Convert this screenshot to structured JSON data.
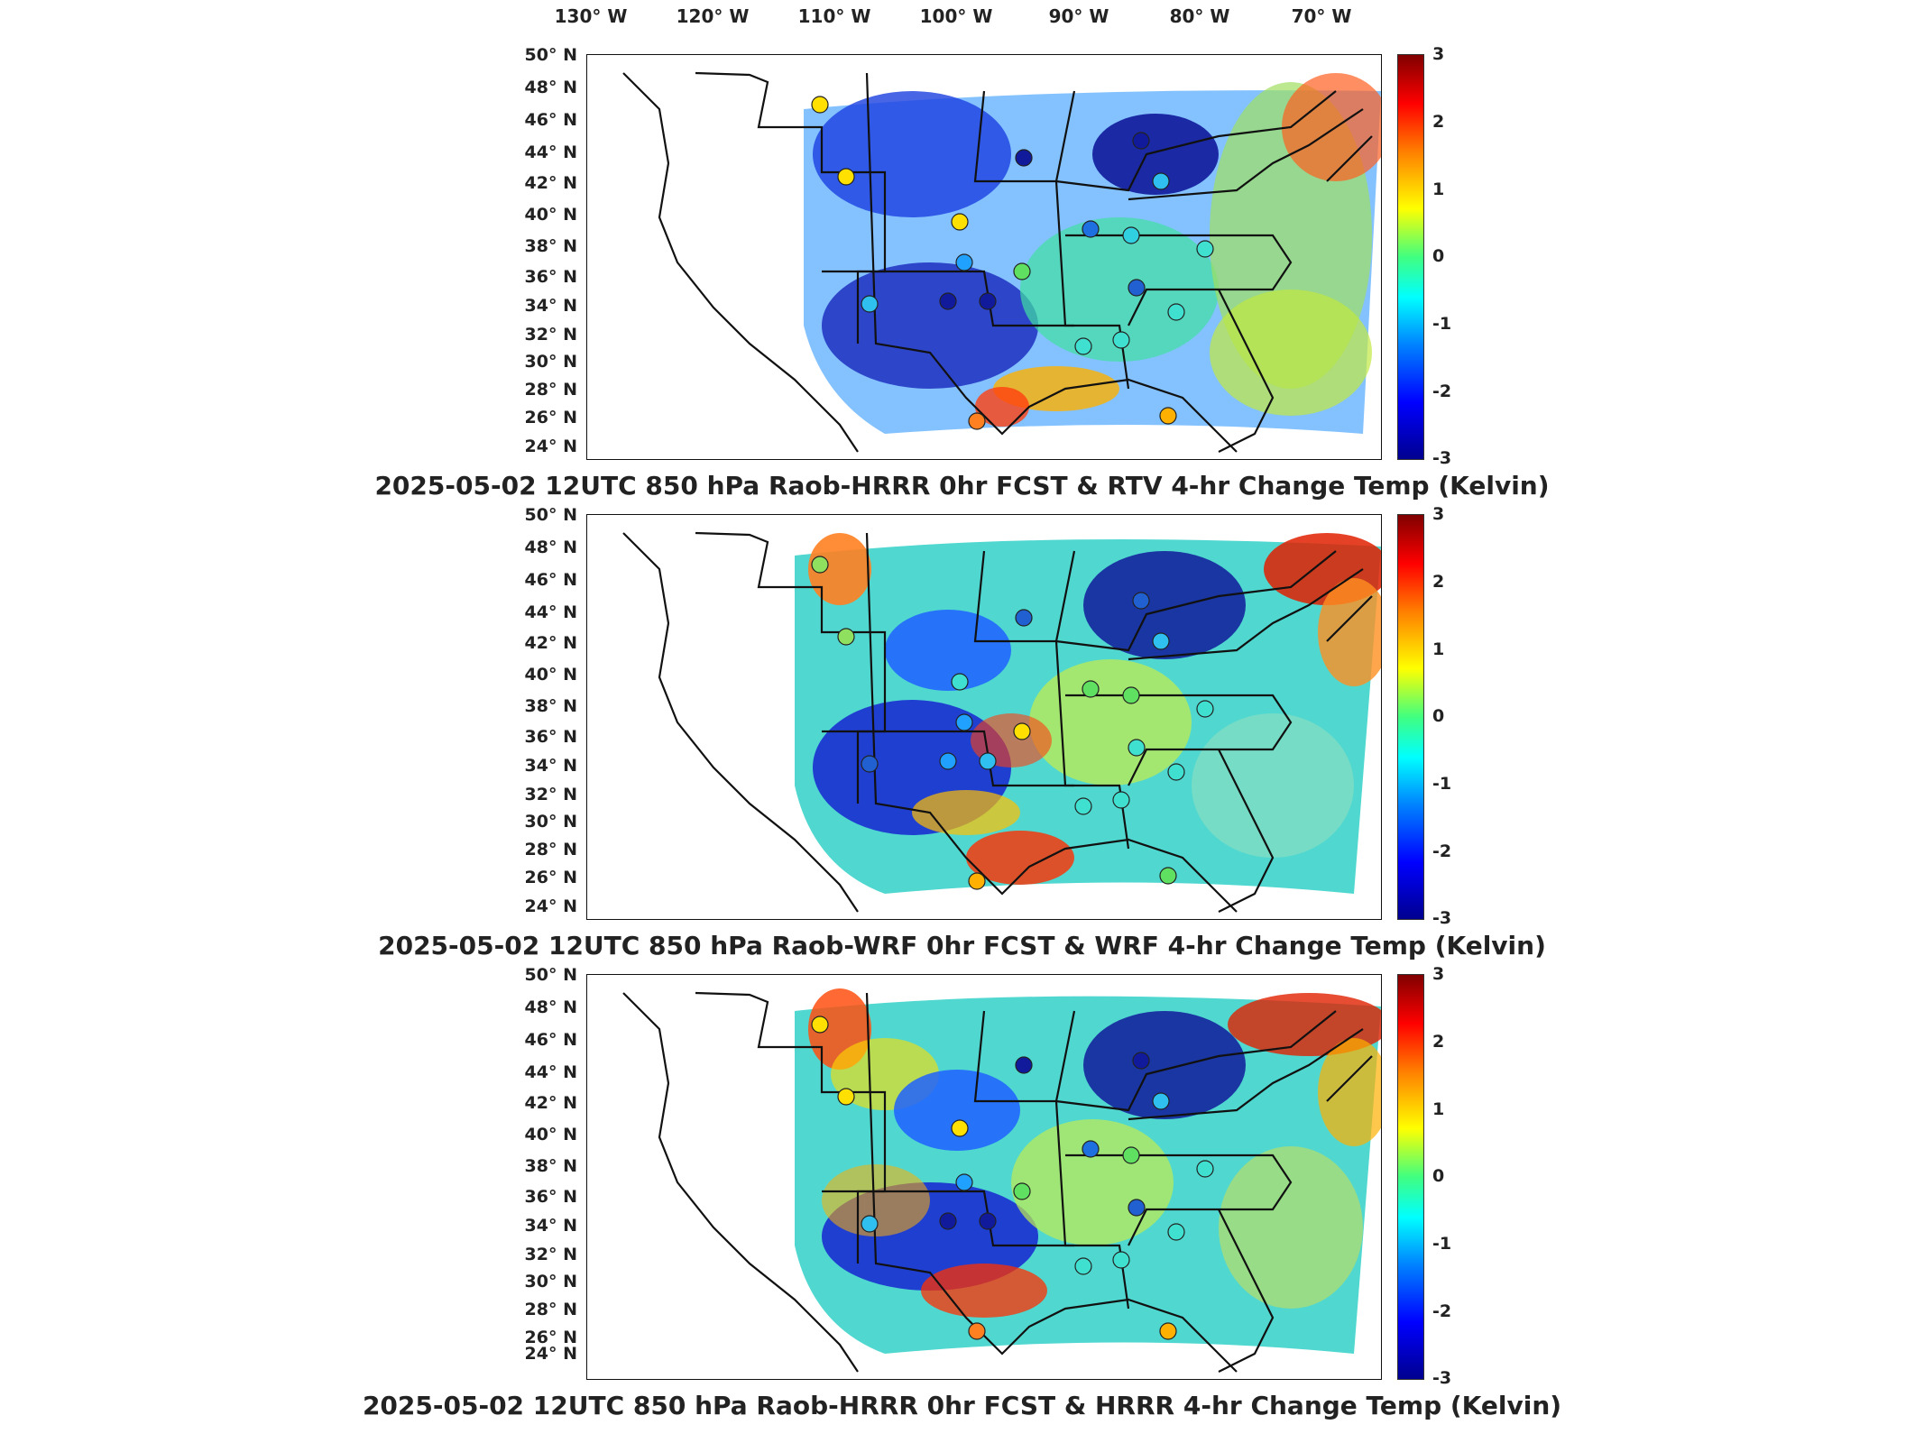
{
  "lon_labels": [
    "130° W",
    "120° W",
    "110° W",
    "100° W",
    "90° W",
    "80° W",
    "70° W"
  ],
  "lat_labels": [
    "50° N",
    "48° N",
    "46° N",
    "44° N",
    "42° N",
    "40° N",
    "38° N",
    "36° N",
    "34° N",
    "32° N",
    "30° N",
    "28° N",
    "26° N",
    "24° N"
  ],
  "colorbar_ticks": [
    "3",
    "2",
    "1",
    "0",
    "-1",
    "-2",
    "-3"
  ],
  "colors": {
    "low": "#00008f",
    "mid": "#40ff80",
    "high": "#800000",
    "border": "#111111"
  },
  "panels": [
    {
      "title": "2025-05-02 12UTC 850 hPa Raob-HRRR 0hr FCST & RTV 4-hr Change Temp (Kelvin)"
    },
    {
      "title": "2025-05-02 12UTC 850 hPa Raob-WRF 0hr FCST & WRF 4-hr Change Temp (Kelvin)"
    },
    {
      "title": "2025-05-02 12UTC 850 hPa Raob-HRRR 0hr FCST & HRRR 4-hr Change Temp (Kelvin)"
    }
  ]
}
